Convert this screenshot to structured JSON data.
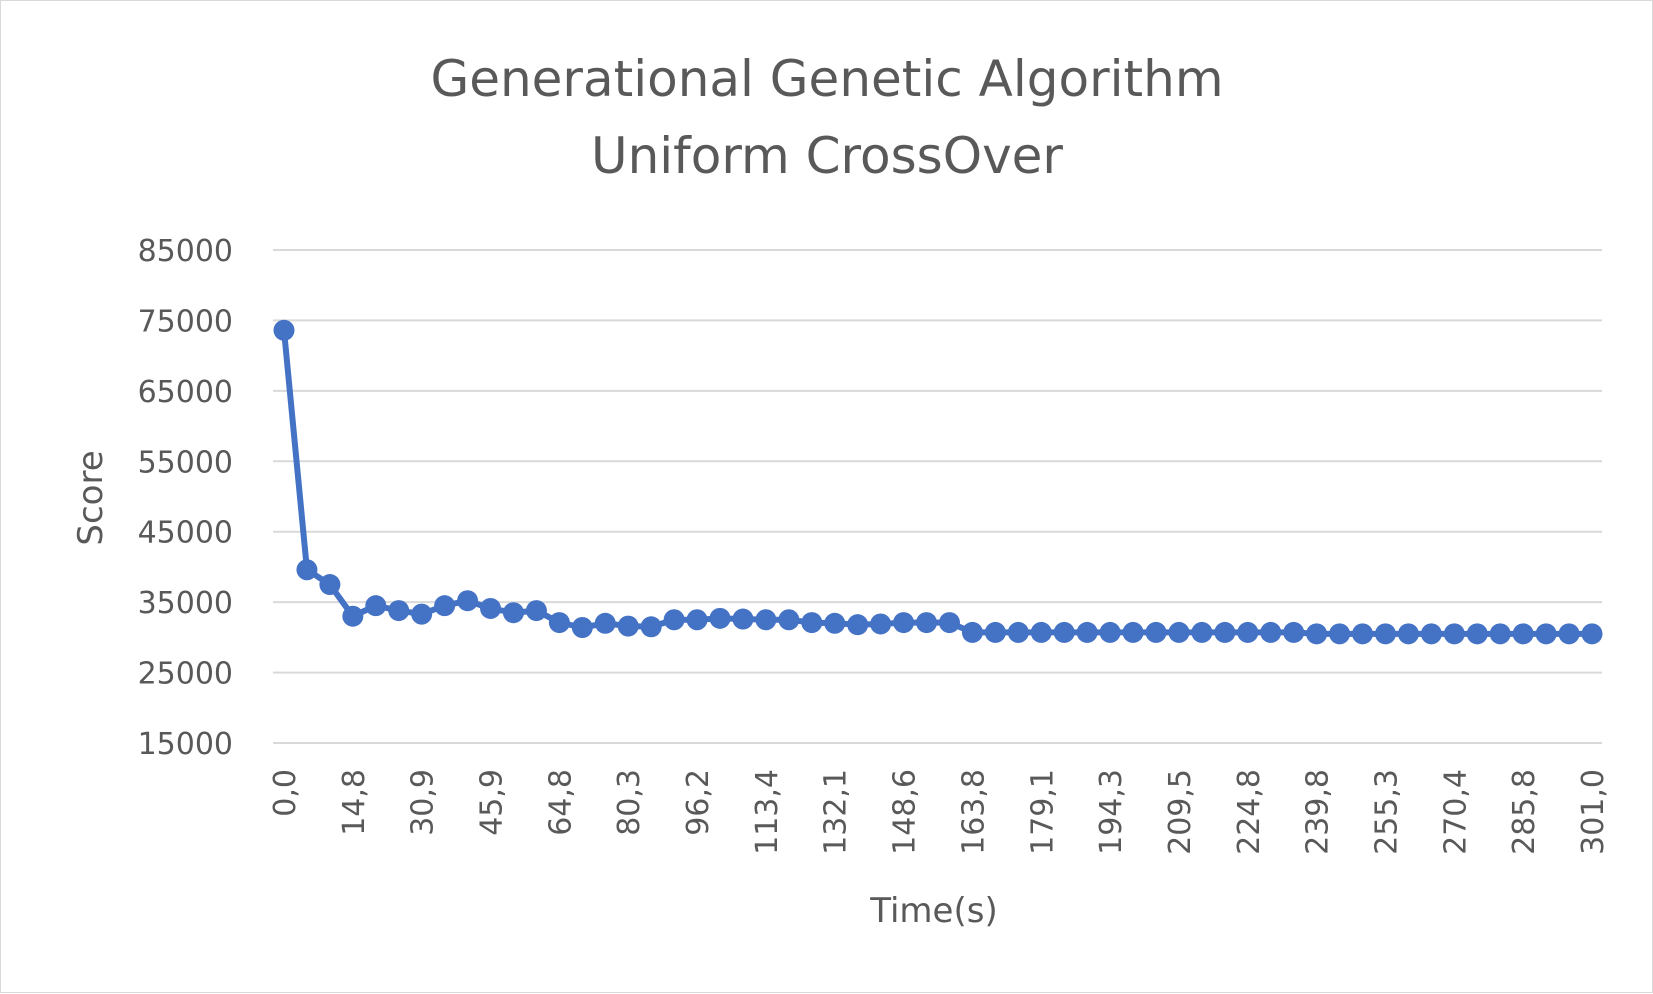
{
  "chart_data": {
    "type": "line",
    "title_lines": [
      "Generational Genetic Algorithm",
      "Uniform CrossOver"
    ],
    "xlabel": "Time(s)",
    "ylabel": "Score",
    "ylim": [
      15000,
      85000
    ],
    "y_ticks": [
      15000,
      25000,
      35000,
      45000,
      55000,
      65000,
      75000,
      85000
    ],
    "grid": true,
    "legend": "none",
    "color": "#4472C4",
    "x_tick_labels": [
      "0,0",
      "14,8",
      "30,9",
      "45,9",
      "64,8",
      "80,3",
      "96,2",
      "113,4",
      "132,1",
      "148,6",
      "163,8",
      "179,1",
      "194,3",
      "209,5",
      "224,8",
      "239,8",
      "255,3",
      "270,4",
      "285,8",
      "301,0"
    ],
    "series": [
      {
        "values": [
          73600,
          39600,
          37500,
          33000,
          34500,
          33800,
          33300,
          34500,
          35200,
          34100,
          33500,
          33800,
          32100,
          31400,
          32000,
          31600,
          31500,
          32500,
          32500,
          32700,
          32600,
          32500,
          32500,
          32100,
          32000,
          31800,
          31900,
          32100,
          32100,
          32100,
          30700,
          30700,
          30700,
          30700,
          30700,
          30700,
          30700,
          30700,
          30700,
          30700,
          30700,
          30700,
          30700,
          30700,
          30700,
          30500,
          30500,
          30500,
          30500,
          30500,
          30500,
          30500,
          30500,
          30500,
          30500,
          30500,
          30500,
          30500
        ]
      }
    ]
  }
}
